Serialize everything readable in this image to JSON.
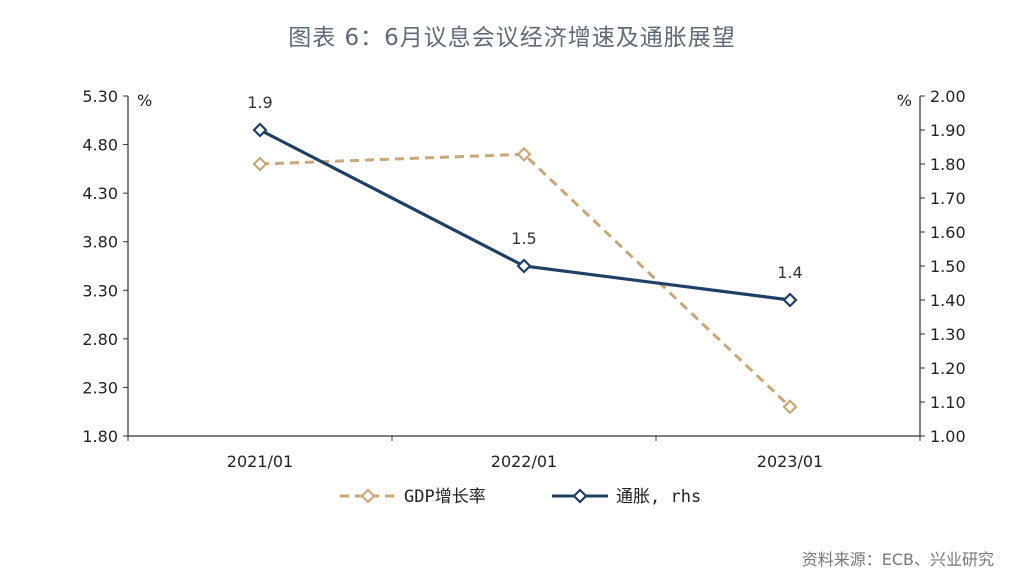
{
  "title": "图表 6：6月议息会议经济增速及通胀展望",
  "source": "资料来源：ECB、兴业研究",
  "chart_data": {
    "type": "line",
    "categories": [
      "2021/01",
      "2022/01",
      "2023/01"
    ],
    "y_left": {
      "unit": "%",
      "min": 1.8,
      "max": 5.3,
      "ticks": [
        "1.80",
        "2.30",
        "2.80",
        "3.30",
        "3.80",
        "4.30",
        "4.80",
        "5.30"
      ]
    },
    "y_right": {
      "unit": "%",
      "min": 1.0,
      "max": 2.0,
      "ticks": [
        "1.00",
        "1.10",
        "1.20",
        "1.30",
        "1.40",
        "1.50",
        "1.60",
        "1.70",
        "1.80",
        "1.90",
        "2.00"
      ]
    },
    "series": [
      {
        "name": "GDP增长率",
        "axis": "left",
        "values": [
          4.6,
          4.7,
          2.1
        ],
        "color": "#c8a878",
        "style": "dashed",
        "labels": [
          "",
          "",
          ""
        ]
      },
      {
        "name": "通胀, rhs",
        "axis": "right",
        "values": [
          1.9,
          1.5,
          1.4
        ],
        "color": "#1f3f66",
        "style": "solid",
        "labels": [
          "1.9",
          "1.5",
          "1.4"
        ]
      }
    ],
    "legend_position": "bottom",
    "grid": false
  }
}
